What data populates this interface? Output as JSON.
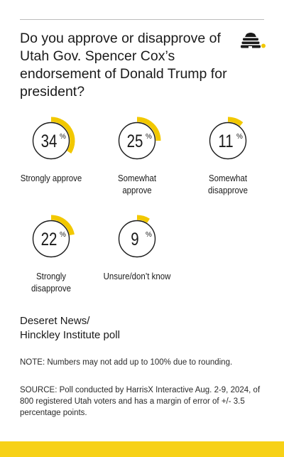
{
  "title": "Do you approve or disapprove of Utah Gov. Spencer Cox’s endorsement of Donald Trump for president?",
  "colors": {
    "accent": "#f2c800",
    "ring": "#1a1a1a",
    "bar": "#f7d117"
  },
  "chart_data": {
    "type": "pie",
    "title": "Do you approve or disapprove of Utah Gov. Spencer Cox’s endorsement of Donald Trump for president?",
    "unit": "%",
    "categories": [
      "Strongly approve",
      "Somewhat approve",
      "Somewhat disapprove",
      "Strongly disapprove",
      "Unsure/don’t know"
    ],
    "values": [
      34,
      25,
      11,
      22,
      9
    ],
    "display_values": [
      "34",
      "25",
      "11",
      "22",
      "9"
    ],
    "label_lines": [
      [
        "Strongly approve"
      ],
      [
        "Somewhat approve"
      ],
      [
        "Somewhat",
        "disapprove"
      ],
      [
        "Strongly",
        "disapprove"
      ],
      [
        "Unsure/don’t know"
      ]
    ]
  },
  "source_title_lines": [
    "Deseret News/",
    "Hinckley Institute poll"
  ],
  "note": "NOTE: Numbers may not add up to 100% due to rounding.",
  "source": "SOURCE: Poll conducted by HarrisX Interactive Aug. 2-9, 2024, of 800 registered Utah voters and has a margin of error of +/- 3.5 percentage points."
}
